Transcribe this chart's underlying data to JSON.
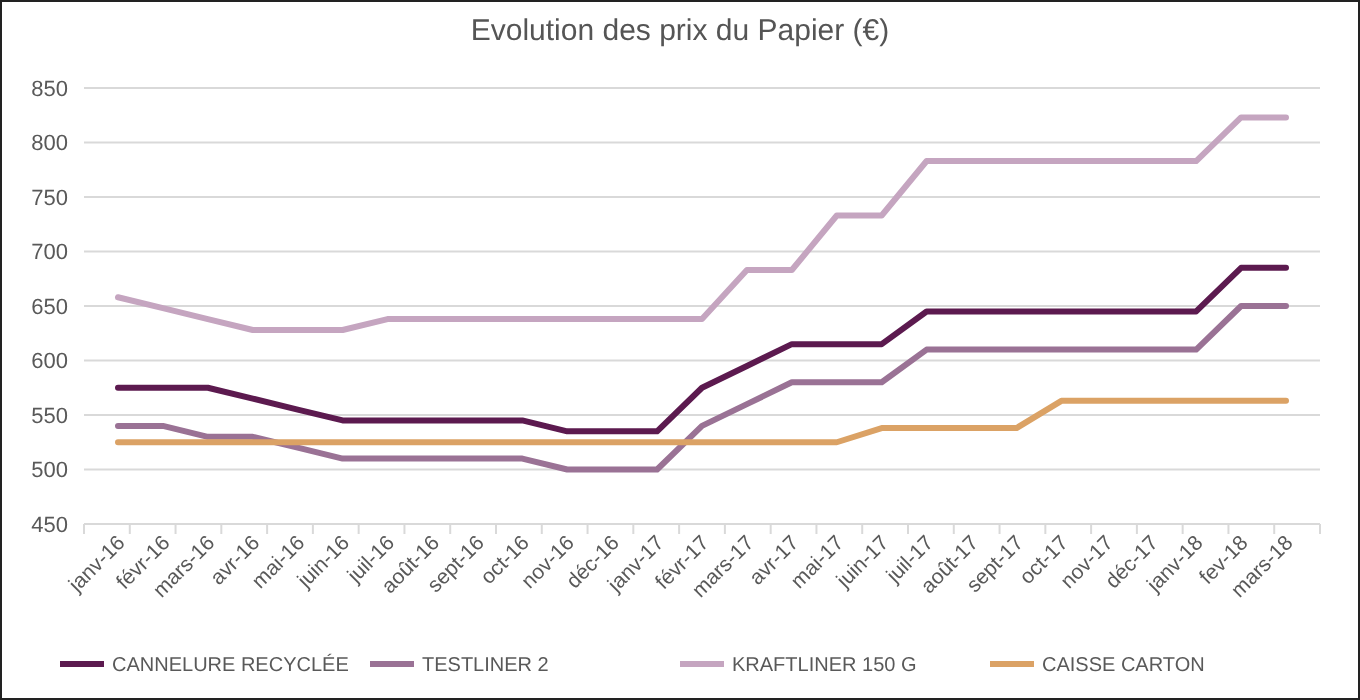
{
  "chart_data": {
    "type": "line",
    "title": "Evolution des prix du Papier (€)",
    "categories": [
      "janv-16",
      "févr-16",
      "mars-16",
      "avr-16",
      "mai-16",
      "juin-16",
      "juil-16",
      "août-16",
      "sept-16",
      "oct-16",
      "nov-16",
      "déc-16",
      "janv-17",
      "févr-17",
      "mars-17",
      "avr-17",
      "mai-17",
      "juin-17",
      "juil-17",
      "août-17",
      "sept-17",
      "oct-17",
      "nov-17",
      "déc-17",
      "janv-18",
      "fev-18",
      "mars-18"
    ],
    "series": [
      {
        "name": "CANNELURE RECYCLÉE",
        "color": "#5c1a4f",
        "values": [
          575,
          575,
          575,
          565,
          555,
          545,
          545,
          545,
          545,
          545,
          535,
          535,
          535,
          575,
          595,
          615,
          615,
          615,
          645,
          645,
          645,
          645,
          645,
          645,
          645,
          685,
          685
        ]
      },
      {
        "name": "TESTLINER 2",
        "color": "#9a7295",
        "values": [
          540,
          540,
          530,
          530,
          520,
          510,
          510,
          510,
          510,
          510,
          500,
          500,
          500,
          540,
          560,
          580,
          580,
          580,
          610,
          610,
          610,
          610,
          610,
          610,
          610,
          650,
          650
        ]
      },
      {
        "name": "KRAFTLINER 150 G",
        "color": "#c5a5c0",
        "values": [
          658,
          648,
          638,
          628,
          628,
          628,
          638,
          638,
          638,
          638,
          638,
          638,
          638,
          638,
          683,
          683,
          733,
          733,
          783,
          783,
          783,
          783,
          783,
          783,
          783,
          823,
          823
        ]
      },
      {
        "name": "CAISSE CARTON",
        "color": "#dba265",
        "values": [
          525,
          525,
          525,
          525,
          525,
          525,
          525,
          525,
          525,
          525,
          525,
          525,
          525,
          525,
          525,
          525,
          525,
          538,
          538,
          538,
          538,
          563,
          563,
          563,
          563,
          563,
          563
        ]
      }
    ],
    "ylim": [
      450,
      850
    ],
    "yticks": [
      450,
      500,
      550,
      600,
      650,
      700,
      750,
      800,
      850
    ],
    "grid": "y",
    "legend": "bottom",
    "marker": "none",
    "line_style": "solid"
  }
}
